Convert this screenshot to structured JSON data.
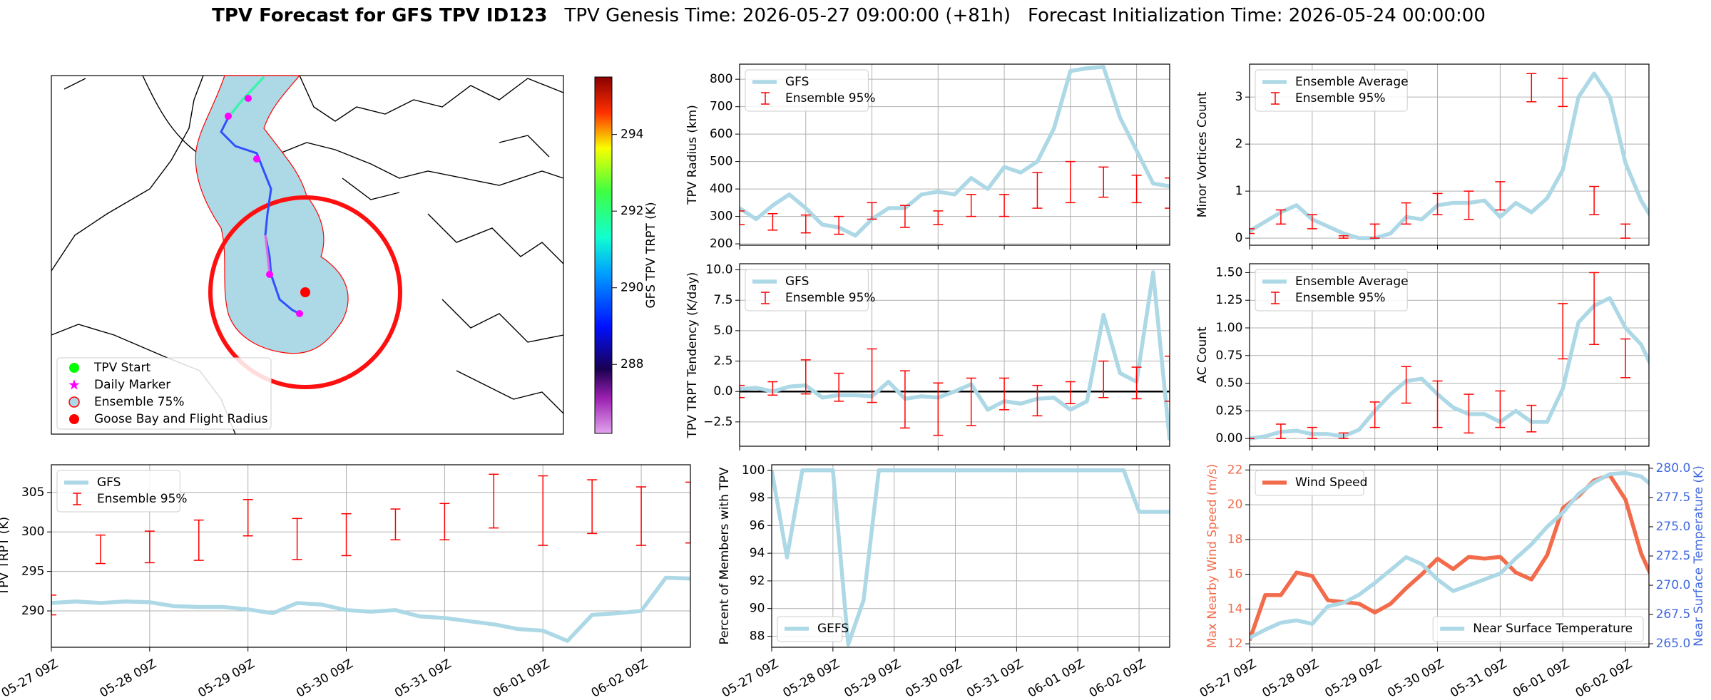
{
  "title": "TPV Forecast for GFS TPV ID123",
  "genesis": "TPV Genesis Time: 2026-05-27 09:00:00 (+81h)",
  "init": "Forecast Initialization Time: 2026-05-24 00:00:00",
  "chart_data": [
    {
      "type": "map",
      "legend": "lower left",
      "series": [
        {
          "name": "TPV Start",
          "color": "#00ff00",
          "marker": "circle"
        },
        {
          "name": "Daily Marker",
          "color": "#ff00ff",
          "marker": "star"
        },
        {
          "name": "Ensemble 75%",
          "color": "#add8e6",
          "marker": "ring"
        },
        {
          "name": "Goose Bay and Flight Radius",
          "color": "#ff0000",
          "marker": "circle"
        }
      ],
      "colorbar": {
        "label": "GFS TPV TRPT (K)",
        "lim": [
          286.2,
          295.5
        ],
        "ticks": [
          288,
          290,
          292,
          294
        ]
      }
    },
    {
      "type": "line",
      "ylabel": "TPV Radius (km)",
      "legend": "upper left",
      "grid": true,
      "xlim": [
        0,
        156
      ],
      "ylim": [
        195,
        855
      ],
      "yticks": [
        200,
        300,
        400,
        500,
        600,
        700,
        800
      ],
      "xticks": [
        0,
        24,
        48,
        72,
        96,
        120,
        144
      ],
      "x": [
        0,
        6,
        12,
        18,
        24,
        30,
        36,
        42,
        48,
        54,
        60,
        66,
        72,
        78,
        84,
        90,
        96,
        102,
        108,
        114,
        120,
        126,
        132,
        138,
        144,
        150,
        156
      ],
      "series": [
        {
          "name": "GFS",
          "color": "#add8e6",
          "values": [
            330,
            290,
            340,
            380,
            330,
            270,
            260,
            230,
            290,
            330,
            330,
            380,
            390,
            380,
            440,
            400,
            480,
            460,
            500,
            620,
            830,
            840,
            845,
            660,
            540,
            420,
            410
          ]
        },
        {
          "name": "Ensemble 95%",
          "color": "#ff0000",
          "kind": "errorbar",
          "x": [
            0,
            12,
            24,
            36,
            48,
            60,
            72,
            84,
            96,
            108,
            120,
            132,
            144,
            156
          ],
          "low": [
            270,
            250,
            240,
            235,
            290,
            260,
            270,
            300,
            300,
            330,
            350,
            370,
            350,
            330
          ],
          "high": [
            320,
            310,
            305,
            300,
            350,
            340,
            320,
            380,
            380,
            460,
            500,
            480,
            450,
            440
          ]
        }
      ]
    },
    {
      "type": "line",
      "ylabel": "TPV TRPT Tendency (K/day)",
      "legend": "upper left",
      "grid": true,
      "axhline": 0,
      "xlim": [
        0,
        156
      ],
      "ylim": [
        -4.5,
        10.5
      ],
      "yticks": [
        {
          "value": -2.5,
          "label": "−2.5"
        },
        {
          "value": 0,
          "label": "0.0"
        },
        {
          "value": 2.5,
          "label": "2.5"
        },
        {
          "value": 5,
          "label": "5.0"
        },
        {
          "value": 7.5,
          "label": "7.5"
        },
        {
          "value": 10,
          "label": "10.0"
        }
      ],
      "xticks": [
        0,
        24,
        48,
        72,
        96,
        120,
        144
      ],
      "x": [
        0,
        6,
        12,
        18,
        24,
        30,
        36,
        42,
        48,
        54,
        60,
        66,
        72,
        78,
        84,
        90,
        96,
        102,
        108,
        114,
        120,
        126,
        132,
        138,
        144,
        150,
        156
      ],
      "series": [
        {
          "name": "GFS",
          "color": "#add8e6",
          "values": [
            0.2,
            0.3,
            0,
            0.4,
            0.5,
            -0.5,
            -0.3,
            -0.3,
            -0.4,
            0.8,
            -0.6,
            -0.4,
            -0.5,
            0,
            0.6,
            -1.5,
            -0.8,
            -1,
            -0.6,
            -0.5,
            -1.5,
            -0.8,
            6.3,
            1.5,
            0.8,
            9.8,
            -4
          ]
        },
        {
          "name": "Ensemble 95%",
          "color": "#ff0000",
          "kind": "errorbar",
          "x": [
            0,
            12,
            24,
            36,
            48,
            60,
            72,
            84,
            96,
            108,
            120,
            132,
            144,
            156
          ],
          "low": [
            -0.5,
            -0.3,
            -0.2,
            -0.8,
            -0.9,
            -3,
            -3.6,
            -2.8,
            -1.5,
            -2,
            -1,
            -0.5,
            -0.6,
            -0.8
          ],
          "high": [
            0.5,
            0.8,
            2.6,
            1.5,
            3.5,
            1.7,
            0.7,
            1.1,
            1.1,
            0.5,
            0.8,
            2.5,
            2,
            2.9
          ]
        }
      ]
    },
    {
      "type": "line",
      "ylabel": "Minor Vortices Count",
      "legend": "upper left",
      "grid": true,
      "xlim": [
        0,
        153
      ],
      "ylim": [
        -0.15,
        3.7
      ],
      "yticks": [
        0,
        1,
        2,
        3
      ],
      "xticks": [
        0,
        24,
        48,
        72,
        96,
        120,
        144
      ],
      "x": [
        0,
        6,
        12,
        18,
        24,
        30,
        36,
        42,
        48,
        54,
        60,
        66,
        72,
        78,
        84,
        90,
        96,
        102,
        108,
        114,
        120,
        126,
        132,
        138,
        144,
        150,
        156
      ],
      "series": [
        {
          "name": "Ensemble Average",
          "color": "#add8e6",
          "values": [
            0.15,
            0.35,
            0.55,
            0.7,
            0.4,
            0.25,
            0.1,
            0,
            0,
            0.1,
            0.45,
            0.4,
            0.7,
            0.75,
            0.75,
            0.8,
            0.45,
            0.75,
            0.55,
            0.85,
            1.45,
            3,
            3.5,
            3,
            1.6,
            0.8,
            0.25
          ]
        },
        {
          "name": "Ensemble 95%",
          "color": "#ff0000",
          "kind": "errorbar",
          "x": [
            0,
            12,
            24,
            36,
            48,
            60,
            72,
            84,
            96,
            108,
            120,
            132,
            144,
            156
          ],
          "low": [
            0.1,
            0.3,
            0.2,
            0,
            0,
            0.3,
            0.5,
            0.4,
            0.6,
            2.9,
            2.8,
            0.5,
            0,
            0
          ],
          "high": [
            0.2,
            0.6,
            0.5,
            0.05,
            0.3,
            0.75,
            0.95,
            1,
            1.2,
            3.5,
            3.4,
            1.1,
            0.3,
            0.2
          ]
        }
      ]
    },
    {
      "type": "line",
      "ylabel": "AC Count",
      "legend": "upper left",
      "grid": true,
      "xlim": [
        0,
        153
      ],
      "ylim": [
        -0.07,
        1.58
      ],
      "yticks": [
        {
          "value": 0,
          "label": "0.00"
        },
        {
          "value": 0.25,
          "label": "0.25"
        },
        {
          "value": 0.5,
          "label": "0.50"
        },
        {
          "value": 0.75,
          "label": "0.75"
        },
        {
          "value": 1,
          "label": "1.00"
        },
        {
          "value": 1.25,
          "label": "1.25"
        },
        {
          "value": 1.5,
          "label": "1.50"
        }
      ],
      "xticks": [
        0,
        24,
        48,
        72,
        96,
        120,
        144
      ],
      "x": [
        0,
        6,
        12,
        18,
        24,
        30,
        36,
        42,
        48,
        54,
        60,
        66,
        72,
        78,
        84,
        90,
        96,
        102,
        108,
        114,
        120,
        126,
        132,
        138,
        144,
        150,
        156
      ],
      "series": [
        {
          "name": "Ensemble Average",
          "color": "#add8e6",
          "values": [
            0,
            0.02,
            0.06,
            0.07,
            0.04,
            0.04,
            0.02,
            0.08,
            0.25,
            0.4,
            0.52,
            0.54,
            0.4,
            0.28,
            0.22,
            0.22,
            0.15,
            0.25,
            0.15,
            0.15,
            0.45,
            1.05,
            1.2,
            1.27,
            1,
            0.85,
            0.55
          ]
        },
        {
          "name": "Ensemble 95%",
          "color": "#ff0000",
          "kind": "errorbar",
          "x": [
            0,
            12,
            24,
            36,
            48,
            60,
            72,
            84,
            96,
            108,
            120,
            132,
            144,
            156
          ],
          "low": [
            0,
            0,
            0,
            0,
            0.1,
            0.32,
            0.1,
            0.05,
            0.1,
            0.06,
            0.72,
            0.85,
            0.55,
            0.35
          ],
          "high": [
            0,
            0.13,
            0.1,
            0.05,
            0.33,
            0.65,
            0.52,
            0.4,
            0.43,
            0.3,
            1.22,
            1.5,
            0.9,
            0.7
          ]
        }
      ]
    },
    {
      "type": "line",
      "ylabel": "TPV TRPT (K)",
      "legend": "upper left",
      "grid": true,
      "xlim": [
        0,
        156
      ],
      "ylim": [
        285.4,
        308.5
      ],
      "yticks": [
        290,
        295,
        300,
        305
      ],
      "xticks": [
        {
          "value": 0,
          "label": "05-27 09Z"
        },
        {
          "value": 24,
          "label": "05-28 09Z"
        },
        {
          "value": 48,
          "label": "05-29 09Z"
        },
        {
          "value": 72,
          "label": "05-30 09Z"
        },
        {
          "value": 96,
          "label": "05-31 09Z"
        },
        {
          "value": 120,
          "label": "06-01 09Z"
        },
        {
          "value": 144,
          "label": "06-02 09Z"
        }
      ],
      "x": [
        0,
        6,
        12,
        18,
        24,
        30,
        36,
        42,
        48,
        54,
        60,
        66,
        72,
        78,
        84,
        90,
        96,
        102,
        108,
        114,
        120,
        126,
        132,
        138,
        144,
        150,
        156
      ],
      "series": [
        {
          "name": "GFS",
          "color": "#add8e6",
          "values": [
            291,
            291.2,
            291,
            291.2,
            291.1,
            290.6,
            290.5,
            290.5,
            290.2,
            289.7,
            291,
            290.8,
            290.1,
            289.9,
            290.1,
            289.3,
            289.1,
            288.7,
            288.3,
            287.7,
            287.5,
            286.2,
            289.5,
            289.7,
            290,
            294.2,
            294.1
          ]
        },
        {
          "name": "Ensemble 95%",
          "color": "#ff0000",
          "kind": "errorbar",
          "x": [
            0,
            12,
            24,
            36,
            48,
            60,
            72,
            84,
            96,
            108,
            120,
            132,
            144,
            156
          ],
          "low": [
            289.5,
            296,
            296.1,
            296.4,
            299.5,
            296.5,
            297,
            299,
            299,
            300.5,
            298.3,
            299.8,
            298.3,
            298.6
          ],
          "high": [
            292,
            299.6,
            300.1,
            301.5,
            304.1,
            301.7,
            302.3,
            302.9,
            303.6,
            307.3,
            307.1,
            306.6,
            305.7,
            306.3
          ]
        }
      ]
    },
    {
      "type": "line",
      "ylabel": "Percent of Members with TPV",
      "legend": "lower left",
      "grid": true,
      "xlim": [
        0,
        156
      ],
      "ylim": [
        87.2,
        100.4
      ],
      "yticks": [
        88,
        90,
        92,
        94,
        96,
        98,
        100
      ],
      "xticks": [
        {
          "value": 0,
          "label": "05-27 09Z"
        },
        {
          "value": 24,
          "label": "05-28 09Z"
        },
        {
          "value": 48,
          "label": "05-29 09Z"
        },
        {
          "value": 72,
          "label": "05-30 09Z"
        },
        {
          "value": 96,
          "label": "05-31 09Z"
        },
        {
          "value": 120,
          "label": "06-01 09Z"
        },
        {
          "value": 144,
          "label": "06-02 09Z"
        }
      ],
      "x": [
        0,
        6,
        12,
        18,
        24,
        30,
        36,
        42,
        48,
        54,
        60,
        66,
        72,
        78,
        84,
        90,
        96,
        102,
        108,
        114,
        120,
        126,
        132,
        138,
        144,
        150,
        156
      ],
      "series": [
        {
          "name": "GEFS",
          "color": "#add8e6",
          "values": [
            100,
            93.7,
            100,
            100,
            100,
            87.4,
            90.6,
            100,
            100,
            100,
            100,
            100,
            100,
            100,
            100,
            100,
            100,
            100,
            100,
            100,
            100,
            100,
            100,
            100,
            97,
            97,
            97
          ]
        }
      ]
    },
    {
      "type": "line",
      "ylabel": "Max Nearby Wind Speed (m/s)",
      "ylabel_color": "#f26b4b",
      "y2label": "Near Surface Temperature (K)",
      "y2label_color": "#4169e1",
      "legend": "upper left",
      "legend2": "lower right",
      "grid": true,
      "xlim": [
        0,
        153
      ],
      "ylim": [
        11.8,
        22.3
      ],
      "yticks": [
        12,
        14,
        16,
        18,
        20,
        22
      ],
      "y2lim": [
        264.7,
        280.3
      ],
      "y2ticks": [
        {
          "value": 265,
          "label": "265.0"
        },
        {
          "value": 267.5,
          "label": "267.5"
        },
        {
          "value": 270,
          "label": "270.0"
        },
        {
          "value": 272.5,
          "label": "272.5"
        },
        {
          "value": 275,
          "label": "275.0"
        },
        {
          "value": 277.5,
          "label": "277.5"
        },
        {
          "value": 280,
          "label": "280.0"
        }
      ],
      "xticks": [
        {
          "value": 0,
          "label": "05-27 09Z"
        },
        {
          "value": 24,
          "label": "05-28 09Z"
        },
        {
          "value": 48,
          "label": "05-29 09Z"
        },
        {
          "value": 72,
          "label": "05-30 09Z"
        },
        {
          "value": 96,
          "label": "05-31 09Z"
        },
        {
          "value": 120,
          "label": "06-01 09Z"
        },
        {
          "value": 144,
          "label": "06-02 09Z"
        }
      ],
      "x": [
        0,
        6,
        12,
        18,
        24,
        30,
        36,
        42,
        48,
        54,
        60,
        66,
        72,
        78,
        84,
        90,
        96,
        102,
        108,
        114,
        120,
        126,
        132,
        138,
        144,
        150,
        156
      ],
      "series": [
        {
          "name": "Wind Speed",
          "color": "#f26b4b",
          "values": [
            12.2,
            14.8,
            14.8,
            16.1,
            15.9,
            14.5,
            14.4,
            14.3,
            13.8,
            14.3,
            15.2,
            16,
            16.9,
            16.3,
            17,
            16.9,
            17,
            16.1,
            15.7,
            17.1,
            19.8,
            20.5,
            21.4,
            21.7,
            20.3,
            17.2,
            15.2
          ]
        },
        {
          "name": "Near Surface Temperature",
          "color": "#add8e6",
          "axis": "y2",
          "values": [
            265.5,
            266.2,
            266.8,
            267,
            266.7,
            268.2,
            268.5,
            269.2,
            270.2,
            271.3,
            272.4,
            271.8,
            270.5,
            269.5,
            270,
            270.5,
            271,
            272.3,
            273.5,
            275,
            276.2,
            277.8,
            278.8,
            279.5,
            279.6,
            279.3,
            278.2
          ]
        }
      ]
    }
  ]
}
